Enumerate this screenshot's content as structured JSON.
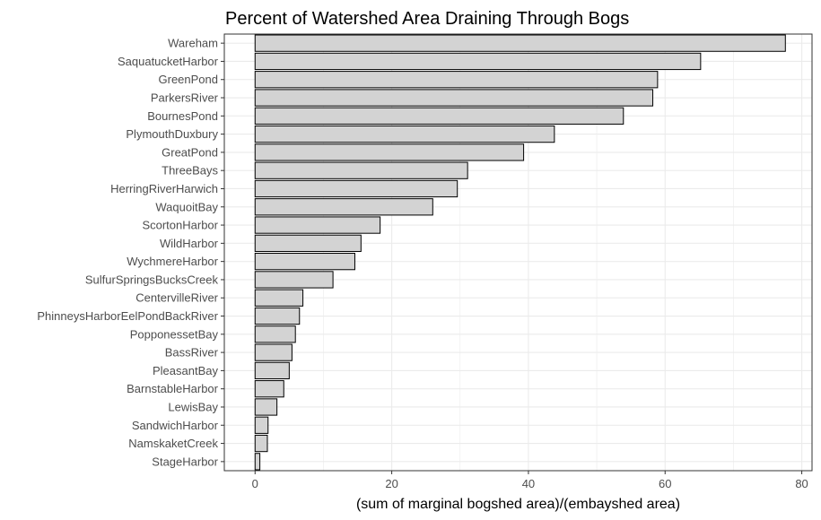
{
  "chart_data": {
    "type": "bar",
    "orientation": "horizontal",
    "title": "Percent of Watershed Area Draining Through Bogs",
    "xlabel": "(sum of marginal bogshed area)/(embayshed area)",
    "ylabel": "",
    "xlim": [
      -4.5,
      81.5
    ],
    "xticks": [
      0,
      20,
      40,
      60,
      80
    ],
    "grid": true,
    "legend": "none",
    "bar_fill": "#d3d3d3",
    "bar_stroke": "#000000",
    "panel_border": "#333333",
    "grid_color": "#ebebeb",
    "categories": [
      "Wareham",
      "SaquatucketHarbor",
      "GreenPond",
      "ParkersRiver",
      "BournesPond",
      "PlymouthDuxbury",
      "GreatPond",
      "ThreeBays",
      "HerringRiverHarwich",
      "WaquoitBay",
      "ScortonHarbor",
      "WildHarbor",
      "WychmereHarbor",
      "SulfurSpringsBucksCreek",
      "CentervilleRiver",
      "PhinneysHarborEelPondBackRiver",
      "PopponessetBay",
      "BassRiver",
      "PleasantBay",
      "BarnstableHarbor",
      "LewisBay",
      "SandwichHarbor",
      "NamskaketCreek",
      "StageHarbor"
    ],
    "values": [
      77.6,
      65.2,
      58.9,
      58.2,
      53.9,
      43.8,
      39.3,
      31.1,
      29.6,
      26.0,
      18.3,
      15.5,
      14.6,
      11.4,
      7.0,
      6.5,
      5.9,
      5.4,
      5.0,
      4.2,
      3.2,
      1.9,
      1.8,
      0.7
    ]
  }
}
